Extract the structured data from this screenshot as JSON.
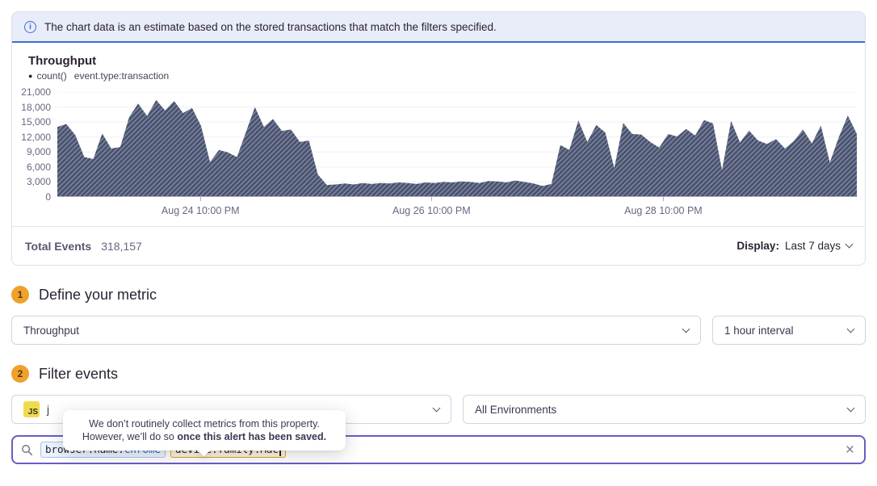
{
  "banner": {
    "text": "The chart data is an estimate based on the stored transactions that match the filters specified."
  },
  "chart_panel": {
    "title": "Throughput",
    "legend": {
      "dot": "●",
      "series_label": "count()",
      "filter_label": "event.type:transaction"
    },
    "footer": {
      "total_label": "Total Events",
      "total_value": "318,157",
      "display_label": "Display:",
      "display_value": "Last 7 days"
    }
  },
  "chart_data": {
    "type": "area",
    "title": "Throughput",
    "series_name": "count() event.type:transaction",
    "ylim": [
      0,
      21000
    ],
    "grid": true,
    "fill_color": "#4a5472",
    "hatch": true,
    "y_ticks": [
      {
        "label": "21,000",
        "value": 21000
      },
      {
        "label": "18,000",
        "value": 18000
      },
      {
        "label": "15,000",
        "value": 15000
      },
      {
        "label": "12,000",
        "value": 12000
      },
      {
        "label": "9,000",
        "value": 9000
      },
      {
        "label": "6,000",
        "value": 6000
      },
      {
        "label": "3,000",
        "value": 3000
      },
      {
        "label": "0",
        "value": 0
      }
    ],
    "x_ticks": [
      {
        "label": "Aug 24 10:00 PM",
        "pos": 0.179
      },
      {
        "label": "Aug 26 10:00 PM",
        "pos": 0.468
      },
      {
        "label": "Aug 28 10:00 PM",
        "pos": 0.758
      }
    ],
    "values": [
      14000,
      14600,
      12400,
      8000,
      7600,
      12700,
      9700,
      10000,
      16000,
      18700,
      16200,
      19400,
      17300,
      19200,
      16800,
      17800,
      14200,
      7000,
      9400,
      8900,
      8000,
      13000,
      18000,
      14000,
      15600,
      13200,
      13500,
      11000,
      11300,
      4500,
      2400,
      2500,
      2700,
      2500,
      2800,
      2600,
      2800,
      2700,
      2900,
      2800,
      2600,
      2900,
      2800,
      3000,
      2900,
      3100,
      3000,
      2800,
      3200,
      3100,
      2900,
      3300,
      3000,
      2700,
      2200,
      2600,
      10400,
      9400,
      15300,
      11000,
      14400,
      12900,
      5800,
      14800,
      12600,
      12500,
      11000,
      9900,
      12600,
      12100,
      13600,
      12300,
      15400,
      14700,
      5400,
      15200,
      10900,
      13300,
      11300,
      10600,
      11600,
      9700,
      11200,
      13500,
      10700,
      14300,
      6900,
      12000,
      16300,
      12600
    ]
  },
  "step1": {
    "number": "1",
    "title": "Define your metric",
    "metric_select_value": "Throughput",
    "interval_select_value": "1 hour interval"
  },
  "step2": {
    "number": "2",
    "title": "Filter events",
    "project_select": {
      "icon_text": "JS",
      "visible_label": "j"
    },
    "environment_select_value": "All Environments"
  },
  "tooltip": {
    "line1": "We don’t routinely collect metrics from this property.",
    "line2_normal": "However, we’ll do so ",
    "line2_bold": "once this alert has been saved."
  },
  "search": {
    "tokens": [
      {
        "key": "browser.name:",
        "value": "Chrome",
        "type": "blue"
      },
      {
        "key": "device.family:",
        "value": "Mac",
        "type": "amber"
      }
    ],
    "caret_after_last": true,
    "clear_glyph": "×"
  },
  "colors": {
    "accent_purple": "#6a5cc4",
    "banner_bg": "#e9edf9",
    "banner_border": "#3c6fcd",
    "badge_amber": "#efa12b",
    "chart_fill": "#4a5472",
    "token_blue_border": "#a3c4ef",
    "token_amber_border": "#dfa512",
    "js_icon_yellow": "#f0db4f"
  }
}
